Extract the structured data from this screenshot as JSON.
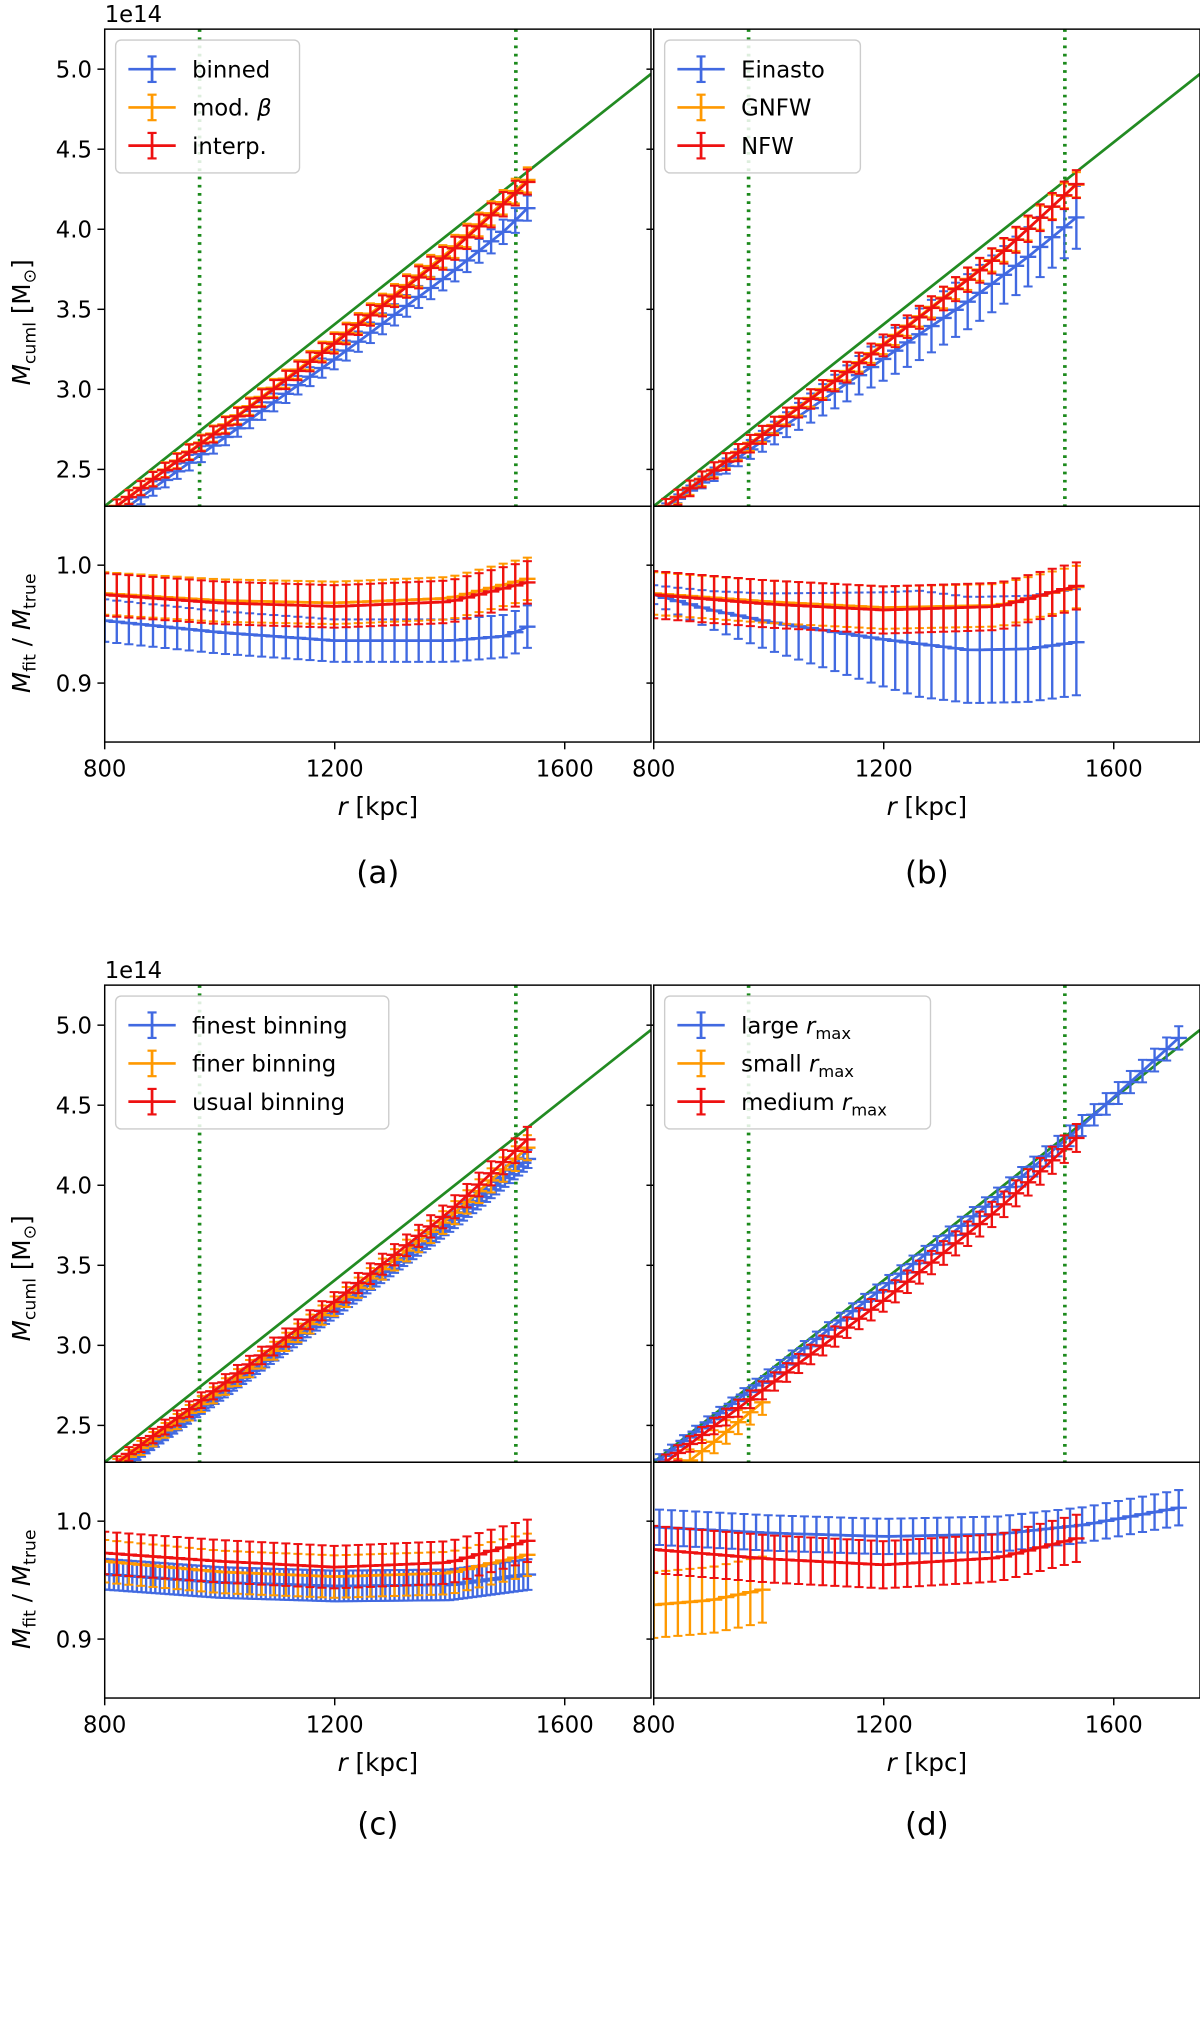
{
  "colors": {
    "blue": "#4169E1",
    "orange": "#FF9900",
    "red": "#EE1111",
    "green": "#228B22",
    "vline": "#1C8A1C"
  },
  "chart_data": [
    {
      "id": "a",
      "type": "line",
      "caption": "(a)",
      "offset_label": "1e14",
      "xlabel": "r [kpc]",
      "ylabel_top": "M_cuml [M_sun]",
      "ylabel_bottom": "M_fit / M_true",
      "xlim": [
        800,
        1750
      ],
      "x_ticks": [
        "800",
        "1200",
        "1600"
      ],
      "top_ylim": [
        2.27,
        5.25
      ],
      "top_y_ticks": [
        "2.5",
        "3.0",
        "3.5",
        "4.0",
        "4.5",
        "5.0"
      ],
      "bottom_ylim": [
        0.85,
        1.05
      ],
      "bottom_y_ticks": [
        "0.9",
        "1.0"
      ],
      "vlines": [
        965,
        1515
      ],
      "legend_position": "top-left",
      "series": [
        {
          "name": "binned",
          "color_key": "blue",
          "r_max": 1540,
          "ratio": [
            [
              800,
              0.953
            ],
            [
              1000,
              0.943
            ],
            [
              1200,
              0.936
            ],
            [
              1400,
              0.936
            ],
            [
              1500,
              0.94
            ],
            [
              1540,
              0.949
            ]
          ],
          "err": 0.018
        },
        {
          "name": "mod. β",
          "color_key": "orange",
          "r_max": 1540,
          "ratio": [
            [
              800,
              0.976
            ],
            [
              1000,
              0.97
            ],
            [
              1200,
              0.968
            ],
            [
              1400,
              0.972
            ],
            [
              1540,
              0.989
            ]
          ],
          "err": 0.018
        },
        {
          "name": "interp.",
          "color_key": "red",
          "r_max": 1540,
          "ratio": [
            [
              800,
              0.975
            ],
            [
              1000,
              0.968
            ],
            [
              1200,
              0.965
            ],
            [
              1400,
              0.969
            ],
            [
              1540,
              0.986
            ]
          ],
          "err": 0.018
        }
      ]
    },
    {
      "id": "b",
      "type": "line",
      "caption": "(b)",
      "offset_label": "",
      "xlabel": "r [kpc]",
      "ylabel_top": "",
      "ylabel_bottom": "",
      "xlim": [
        800,
        1750
      ],
      "x_ticks": [
        "800",
        "1200",
        "1600"
      ],
      "top_ylim": [
        2.27,
        5.25
      ],
      "top_y_ticks": [],
      "bottom_ylim": [
        0.85,
        1.05
      ],
      "bottom_y_ticks": [],
      "vlines": [
        965,
        1515
      ],
      "legend_position": "top-left",
      "series": [
        {
          "name": "Einasto",
          "color_key": "blue",
          "r_max": 1540,
          "ratio": [
            [
              800,
              0.975
            ],
            [
              900,
              0.962
            ],
            [
              1000,
              0.952
            ],
            [
              1200,
              0.937
            ],
            [
              1350,
              0.928
            ],
            [
              1450,
              0.929
            ],
            [
              1540,
              0.935
            ]
          ],
          "err": [
            0.008,
            0.045
          ]
        },
        {
          "name": "GNFW",
          "color_key": "orange",
          "r_max": 1540,
          "ratio": [
            [
              800,
              0.976
            ],
            [
              1000,
              0.969
            ],
            [
              1200,
              0.964
            ],
            [
              1400,
              0.966
            ],
            [
              1540,
              0.982
            ]
          ],
          "err": 0.018
        },
        {
          "name": "NFW",
          "color_key": "red",
          "r_max": 1540,
          "ratio": [
            [
              800,
              0.975
            ],
            [
              1000,
              0.967
            ],
            [
              1200,
              0.962
            ],
            [
              1400,
              0.965
            ],
            [
              1540,
              0.983
            ]
          ],
          "err": 0.02
        }
      ]
    },
    {
      "id": "c",
      "type": "line",
      "caption": "(c)",
      "offset_label": "1e14",
      "xlabel": "r [kpc]",
      "ylabel_top": "M_cuml [M_sun]",
      "ylabel_bottom": "M_fit / M_true",
      "xlim": [
        800,
        1750
      ],
      "x_ticks": [
        "800",
        "1200",
        "1600"
      ],
      "top_ylim": [
        2.27,
        5.25
      ],
      "top_y_ticks": [
        "2.5",
        "3.0",
        "3.5",
        "4.0",
        "4.5",
        "5.0"
      ],
      "bottom_ylim": [
        0.85,
        1.05
      ],
      "bottom_y_ticks": [
        "0.9",
        "1.0"
      ],
      "vlines": [
        965,
        1515
      ],
      "legend_position": "top-left",
      "series": [
        {
          "name": "finest binning",
          "color_key": "blue",
          "r_max": 1540,
          "ratio": [
            [
              800,
              0.955
            ],
            [
              1000,
              0.948
            ],
            [
              1200,
              0.945
            ],
            [
              1400,
              0.946
            ],
            [
              1540,
              0.955
            ]
          ],
          "err": 0.013,
          "dense": true
        },
        {
          "name": "finer binning",
          "color_key": "orange",
          "r_max": 1540,
          "ratio": [
            [
              800,
              0.966
            ],
            [
              1000,
              0.957
            ],
            [
              1200,
              0.953
            ],
            [
              1400,
              0.956
            ],
            [
              1540,
              0.972
            ]
          ],
          "err": 0.018
        },
        {
          "name": "usual binning",
          "color_key": "red",
          "r_max": 1540,
          "ratio": [
            [
              800,
              0.973
            ],
            [
              1000,
              0.966
            ],
            [
              1200,
              0.961
            ],
            [
              1400,
              0.965
            ],
            [
              1540,
              0.984
            ]
          ],
          "err": 0.018
        }
      ]
    },
    {
      "id": "d",
      "type": "line",
      "caption": "(d)",
      "offset_label": "",
      "xlabel": "r [kpc]",
      "ylabel_top": "",
      "ylabel_bottom": "",
      "xlim": [
        800,
        1750
      ],
      "x_ticks": [
        "800",
        "1200",
        "1600"
      ],
      "top_ylim": [
        2.27,
        5.25
      ],
      "top_y_ticks": [],
      "bottom_ylim": [
        0.85,
        1.05
      ],
      "bottom_y_ticks": [],
      "vlines": [
        965,
        1515
      ],
      "legend_position": "top-left",
      "series": [
        {
          "name": "large r_max",
          "color_key": "blue",
          "r_max": 1720,
          "ratio": [
            [
              800,
              0.995
            ],
            [
              1000,
              0.99
            ],
            [
              1200,
              0.987
            ],
            [
              1400,
              0.989
            ],
            [
              1550,
              0.997
            ],
            [
              1720,
              1.012
            ]
          ],
          "err": 0.015
        },
        {
          "name": "small r_max",
          "color_key": "orange",
          "r_max": 990,
          "ratio": [
            [
              800,
              0.929
            ],
            [
              900,
              0.933
            ],
            [
              990,
              0.942
            ]
          ],
          "err": 0.028
        },
        {
          "name": "medium r_max",
          "color_key": "red",
          "r_max": 1540,
          "ratio": [
            [
              800,
              0.976
            ],
            [
              1000,
              0.968
            ],
            [
              1200,
              0.963
            ],
            [
              1400,
              0.969
            ],
            [
              1540,
              0.986
            ]
          ],
          "err": 0.02
        }
      ]
    }
  ]
}
